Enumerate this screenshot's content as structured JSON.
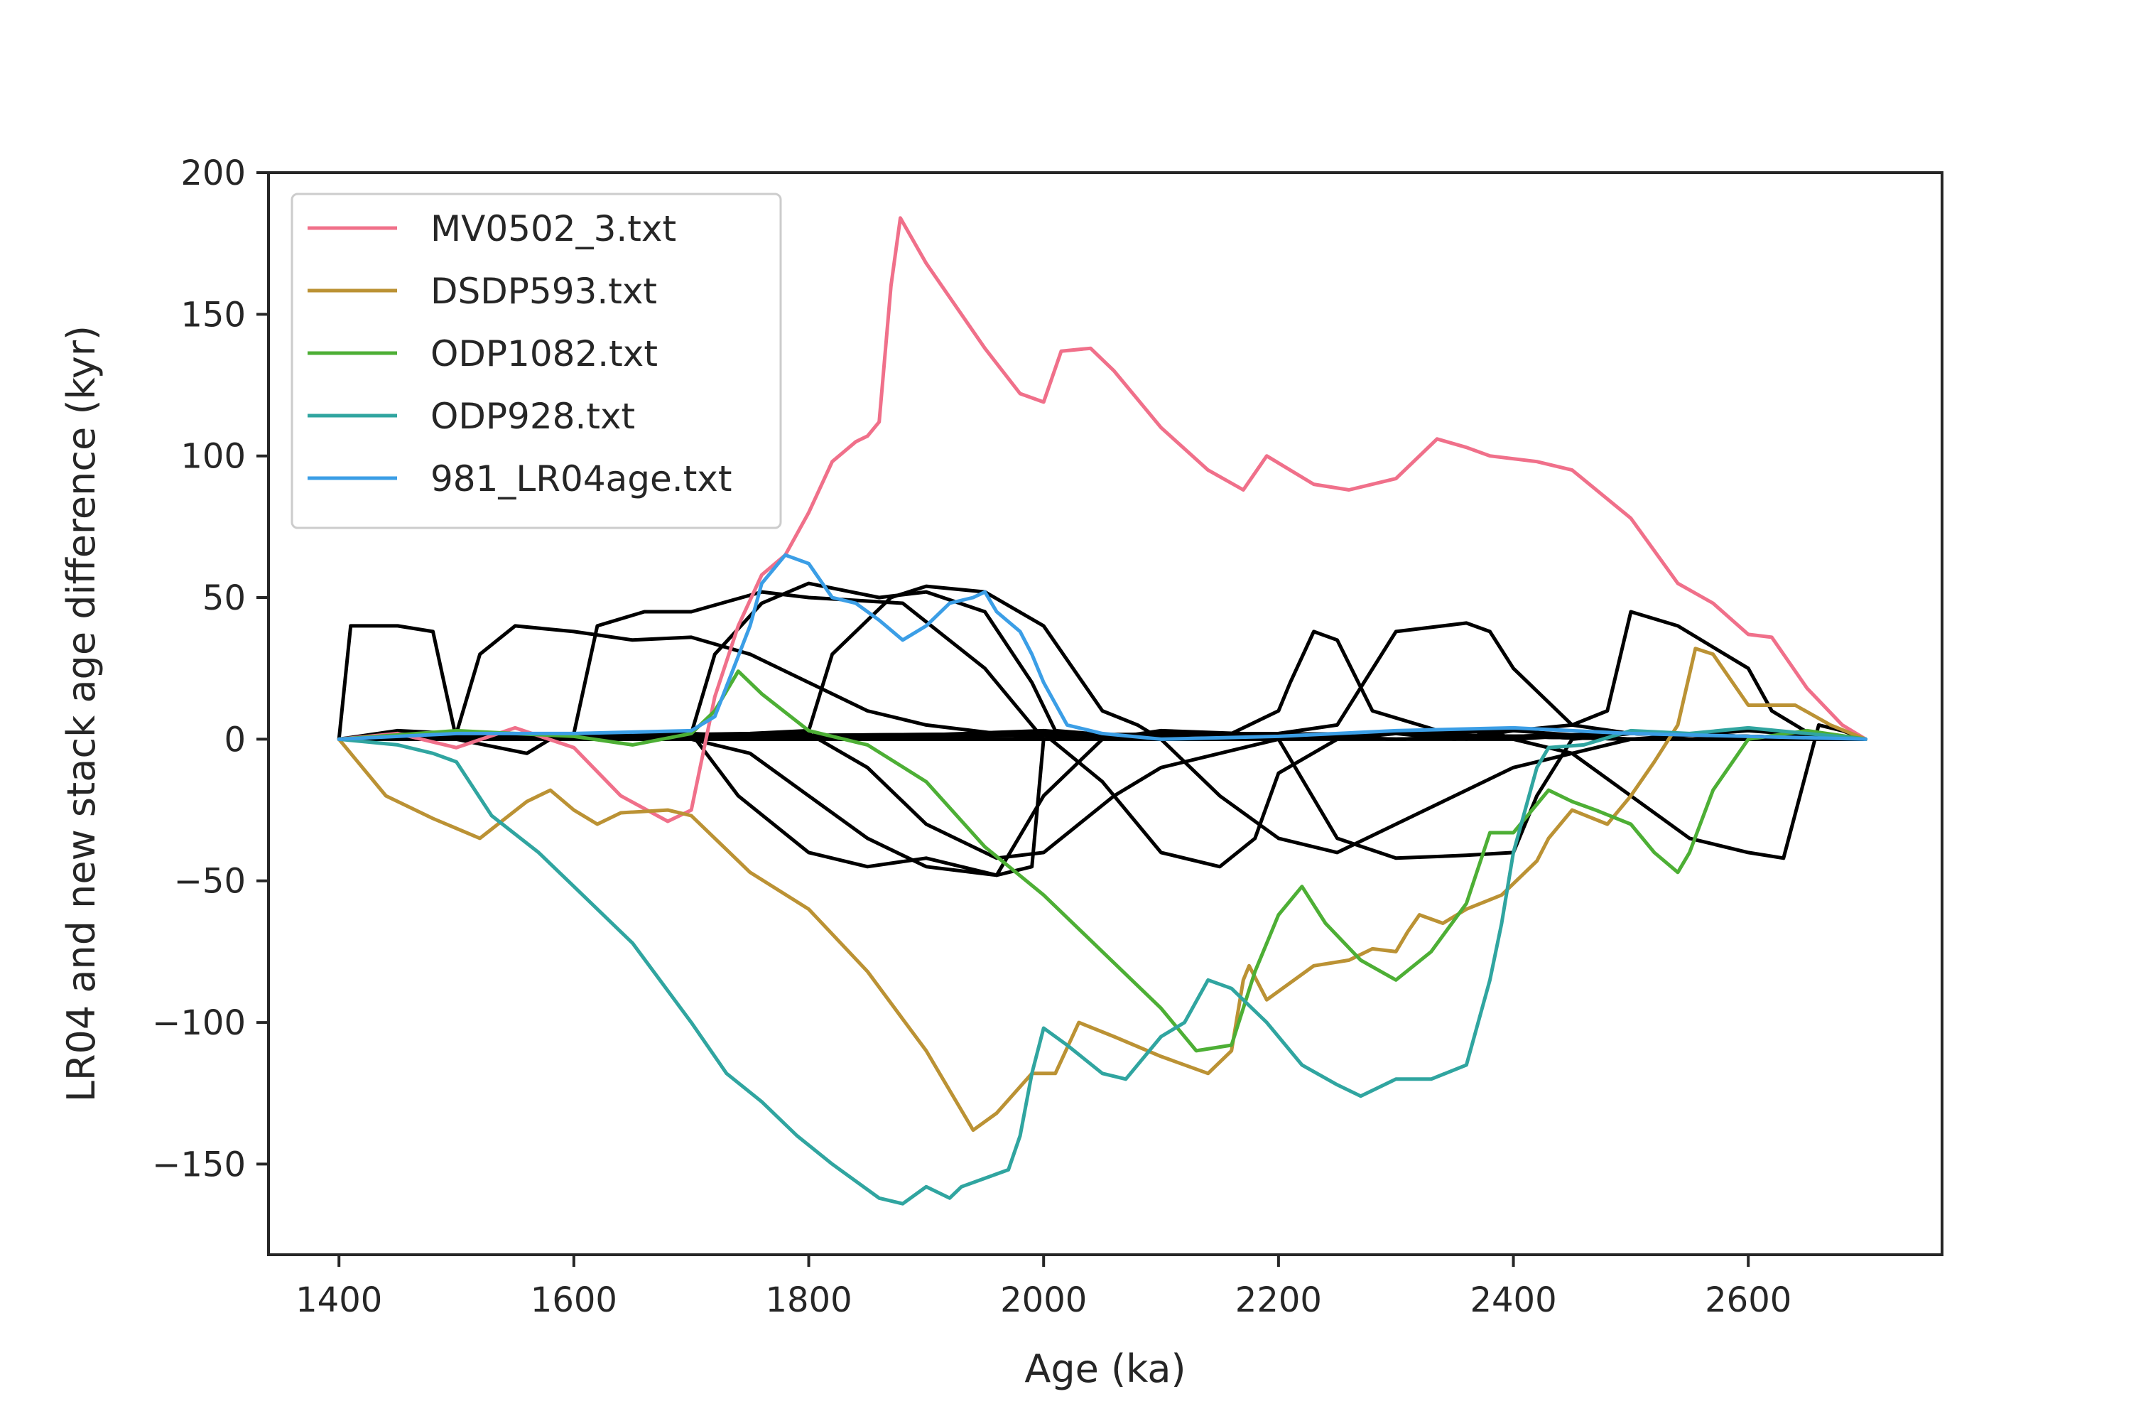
{
  "chart_data": {
    "type": "line",
    "title": "",
    "xlabel": "Age (ka)",
    "ylabel": "LR04 and new stack age difference (kyr)",
    "xlim": [
      1340,
      2765
    ],
    "ylim": [
      -182,
      200
    ],
    "xticks": [
      1400,
      1600,
      1800,
      2000,
      2200,
      2400,
      2600
    ],
    "yticks": [
      -150,
      -100,
      -50,
      0,
      50,
      100,
      150,
      200
    ],
    "xtick_labels": [
      "1400",
      "1600",
      "1800",
      "2000",
      "2200",
      "2400",
      "2600"
    ],
    "ytick_labels": [
      "−150",
      "−100",
      "−50",
      "0",
      "50",
      "100",
      "150",
      "200"
    ],
    "grid": false,
    "legend_position": "upper-left",
    "series": [
      {
        "name": "MV0502_3.txt",
        "color": "#f0708a",
        "x": [
          1400,
          1450,
          1500,
          1550,
          1600,
          1640,
          1680,
          1700,
          1720,
          1740,
          1760,
          1780,
          1800,
          1820,
          1840,
          1850,
          1860,
          1870,
          1878,
          1900,
          1950,
          1980,
          2000,
          2015,
          2040,
          2060,
          2100,
          2140,
          2170,
          2190,
          2230,
          2260,
          2300,
          2320,
          2335,
          2360,
          2380,
          2420,
          2450,
          2500,
          2540,
          2570,
          2600,
          2620,
          2650,
          2680,
          2700
        ],
        "y": [
          0,
          2,
          -3,
          4,
          -3,
          -20,
          -29,
          -25,
          15,
          40,
          58,
          65,
          80,
          98,
          105,
          107,
          112,
          160,
          184,
          168,
          138,
          122,
          119,
          137,
          138,
          130,
          110,
          95,
          88,
          100,
          90,
          88,
          92,
          100,
          106,
          103,
          100,
          98,
          95,
          78,
          55,
          48,
          37,
          36,
          18,
          5,
          0
        ]
      },
      {
        "name": "DSDP593.txt",
        "color": "#bb9234",
        "x": [
          1400,
          1440,
          1480,
          1520,
          1560,
          1580,
          1600,
          1620,
          1640,
          1680,
          1700,
          1720,
          1750,
          1800,
          1850,
          1900,
          1940,
          1960,
          1990,
          2010,
          2030,
          2060,
          2100,
          2140,
          2160,
          2170,
          2175,
          2190,
          2230,
          2260,
          2280,
          2300,
          2310,
          2320,
          2340,
          2360,
          2390,
          2420,
          2430,
          2450,
          2480,
          2500,
          2520,
          2540,
          2555,
          2570,
          2600,
          2640,
          2670,
          2700
        ],
        "y": [
          0,
          -20,
          -28,
          -35,
          -22,
          -18,
          -25,
          -30,
          -26,
          -25,
          -27,
          -35,
          -47,
          -60,
          -82,
          -110,
          -138,
          -132,
          -118,
          -118,
          -100,
          -105,
          -112,
          -118,
          -110,
          -85,
          -80,
          -92,
          -80,
          -78,
          -74,
          -75,
          -68,
          -62,
          -65,
          -60,
          -55,
          -43,
          -35,
          -25,
          -30,
          -20,
          -8,
          5,
          32,
          30,
          12,
          12,
          5,
          0
        ]
      },
      {
        "name": "ODP1082.txt",
        "color": "#4daf35",
        "x": [
          1400,
          1500,
          1600,
          1650,
          1700,
          1720,
          1740,
          1760,
          1800,
          1850,
          1900,
          1950,
          2000,
          2050,
          2100,
          2130,
          2160,
          2180,
          2200,
          2220,
          2240,
          2270,
          2300,
          2330,
          2360,
          2380,
          2400,
          2430,
          2450,
          2470,
          2500,
          2520,
          2540,
          2550,
          2570,
          2600,
          2650,
          2700
        ],
        "y": [
          0,
          3,
          1,
          -2,
          2,
          10,
          24,
          16,
          3,
          -2,
          -15,
          -38,
          -55,
          -75,
          -95,
          -110,
          -108,
          -82,
          -62,
          -52,
          -65,
          -78,
          -85,
          -75,
          -58,
          -33,
          -33,
          -18,
          -22,
          -25,
          -30,
          -40,
          -47,
          -40,
          -18,
          0,
          3,
          0
        ]
      },
      {
        "name": "ODP928.txt",
        "color": "#30a5a0",
        "x": [
          1400,
          1450,
          1480,
          1500,
          1530,
          1570,
          1600,
          1650,
          1700,
          1730,
          1760,
          1790,
          1820,
          1860,
          1880,
          1900,
          1920,
          1930,
          1950,
          1970,
          1980,
          1990,
          2000,
          2020,
          2050,
          2070,
          2100,
          2120,
          2140,
          2160,
          2190,
          2220,
          2250,
          2270,
          2300,
          2330,
          2360,
          2380,
          2390,
          2400,
          2420,
          2430,
          2460,
          2500,
          2550,
          2600,
          2650,
          2700
        ],
        "y": [
          0,
          -2,
          -5,
          -8,
          -27,
          -40,
          -52,
          -72,
          -100,
          -118,
          -128,
          -140,
          -150,
          -162,
          -164,
          -158,
          -162,
          -158,
          -155,
          -152,
          -140,
          -118,
          -102,
          -108,
          -118,
          -120,
          -105,
          -100,
          -85,
          -88,
          -100,
          -115,
          -122,
          -126,
          -120,
          -120,
          -115,
          -85,
          -65,
          -40,
          -10,
          -3,
          -2,
          3,
          2,
          4,
          2,
          0
        ]
      },
      {
        "name": "981_LR04age.txt",
        "color": "#3b9ee6",
        "x": [
          1400,
          1500,
          1600,
          1700,
          1720,
          1750,
          1760,
          1780,
          1800,
          1820,
          1840,
          1860,
          1880,
          1900,
          1920,
          1940,
          1950,
          1960,
          1980,
          1990,
          2000,
          2020,
          2050,
          2100,
          2200,
          2300,
          2400,
          2500,
          2600,
          2700
        ],
        "y": [
          0,
          2,
          2,
          3,
          8,
          40,
          55,
          65,
          62,
          50,
          48,
          42,
          35,
          40,
          48,
          50,
          52,
          45,
          38,
          30,
          20,
          5,
          2,
          0,
          1,
          3,
          4,
          2,
          1,
          0
        ]
      },
      {
        "name": "",
        "color": "#000000",
        "x": [
          1400,
          1410,
          1450,
          1480,
          1500,
          1560,
          1580,
          1700,
          1800,
          2000,
          2100,
          2300,
          2500,
          2600,
          2700
        ],
        "y": [
          0,
          40,
          40,
          38,
          0,
          -5,
          0,
          2,
          0,
          3,
          0,
          2,
          0,
          3,
          0
        ]
      },
      {
        "name": "",
        "color": "#000000",
        "x": [
          1400,
          1450,
          1500,
          1520,
          1550,
          1600,
          1650,
          1700,
          1750,
          1800,
          1850,
          1900,
          2000,
          2100,
          2300,
          2500,
          2700
        ],
        "y": [
          0,
          3,
          2,
          30,
          40,
          38,
          35,
          36,
          30,
          20,
          10,
          5,
          0,
          2,
          0,
          2,
          0
        ]
      },
      {
        "name": "",
        "color": "#000000",
        "x": [
          1400,
          1600,
          1620,
          1660,
          1700,
          1760,
          1800,
          1880,
          1950,
          2000,
          2100,
          2300,
          2500,
          2700
        ],
        "y": [
          0,
          2,
          40,
          45,
          45,
          52,
          50,
          48,
          25,
          0,
          2,
          0,
          2,
          0
        ]
      },
      {
        "name": "",
        "color": "#000000",
        "x": [
          1400,
          1700,
          1720,
          1760,
          1800,
          1860,
          1900,
          1950,
          1990,
          2010,
          2100,
          2300,
          2500,
          2700
        ],
        "y": [
          0,
          2,
          30,
          48,
          55,
          50,
          52,
          45,
          20,
          3,
          0,
          2,
          0,
          0
        ]
      },
      {
        "name": "",
        "color": "#000000",
        "x": [
          1400,
          1600,
          1700,
          1750,
          1800,
          1850,
          1900,
          1960,
          1990,
          2000,
          2100,
          2300,
          2500,
          2700
        ],
        "y": [
          0,
          2,
          0,
          -5,
          -20,
          -35,
          -45,
          -48,
          -45,
          0,
          0,
          2,
          0,
          0
        ]
      },
      {
        "name": "",
        "color": "#000000",
        "x": [
          1400,
          1700,
          1740,
          1800,
          1850,
          1900,
          1960,
          2000,
          2050,
          2100,
          2300,
          2500,
          2700
        ],
        "y": [
          0,
          2,
          -20,
          -40,
          -45,
          -42,
          -48,
          -20,
          0,
          3,
          0,
          2,
          0
        ]
      },
      {
        "name": "",
        "color": "#000000",
        "x": [
          1400,
          1750,
          1800,
          1820,
          1870,
          1900,
          1950,
          2000,
          2050,
          2080,
          2100,
          2300,
          2500,
          2700
        ],
        "y": [
          0,
          2,
          3,
          30,
          50,
          54,
          52,
          40,
          10,
          5,
          0,
          2,
          0,
          0
        ]
      },
      {
        "name": "",
        "color": "#000000",
        "x": [
          1400,
          1800,
          1850,
          1900,
          1960,
          2000,
          2060,
          2100,
          2150,
          2200,
          2300,
          2500,
          2700
        ],
        "y": [
          0,
          2,
          -10,
          -30,
          -42,
          -40,
          -20,
          -10,
          -5,
          0,
          2,
          0,
          0
        ]
      },
      {
        "name": "",
        "color": "#000000",
        "x": [
          1400,
          2000,
          2050,
          2100,
          2150,
          2180,
          2200,
          2250,
          2300,
          2350,
          2400,
          2500,
          2700
        ],
        "y": [
          0,
          2,
          -15,
          -40,
          -45,
          -35,
          -12,
          0,
          2,
          0,
          3,
          0,
          0
        ]
      },
      {
        "name": "",
        "color": "#000000",
        "x": [
          1400,
          2000,
          2150,
          2200,
          2210,
          2230,
          2250,
          2280,
          2320,
          2360,
          2380,
          2400,
          2440,
          2500,
          2700
        ],
        "y": [
          0,
          2,
          0,
          10,
          20,
          38,
          35,
          10,
          5,
          0,
          3,
          0,
          1,
          0,
          0
        ]
      },
      {
        "name": "",
        "color": "#000000",
        "x": [
          1400,
          2200,
          2250,
          2300,
          2340,
          2360,
          2380,
          2400,
          2450,
          2500,
          2700
        ],
        "y": [
          0,
          2,
          5,
          38,
          40,
          41,
          38,
          25,
          5,
          2,
          0
        ]
      },
      {
        "name": "",
        "color": "#000000",
        "x": [
          1400,
          2200,
          2250,
          2300,
          2360,
          2400,
          2420,
          2450,
          2500,
          2700
        ],
        "y": [
          0,
          0,
          -35,
          -42,
          -41,
          -40,
          -20,
          0,
          2,
          0
        ]
      },
      {
        "name": "",
        "color": "#000000",
        "x": [
          1400,
          2300,
          2400,
          2450,
          2480,
          2500,
          2540,
          2600,
          2620,
          2640,
          2660,
          2700
        ],
        "y": [
          0,
          2,
          3,
          5,
          10,
          45,
          40,
          25,
          10,
          5,
          0,
          0
        ]
      },
      {
        "name": "",
        "color": "#000000",
        "x": [
          1400,
          2400,
          2450,
          2500,
          2550,
          2600,
          2630,
          2660,
          2680,
          2700
        ],
        "y": [
          0,
          0,
          -5,
          -20,
          -35,
          -40,
          -42,
          5,
          3,
          0
        ]
      },
      {
        "name": "",
        "color": "#000000",
        "x": [
          1400,
          2100,
          2150,
          2200,
          2250,
          2300,
          2350,
          2400,
          2450,
          2500,
          2700
        ],
        "y": [
          0,
          0,
          -20,
          -35,
          -40,
          -30,
          -20,
          -10,
          -5,
          0,
          0
        ]
      }
    ]
  }
}
